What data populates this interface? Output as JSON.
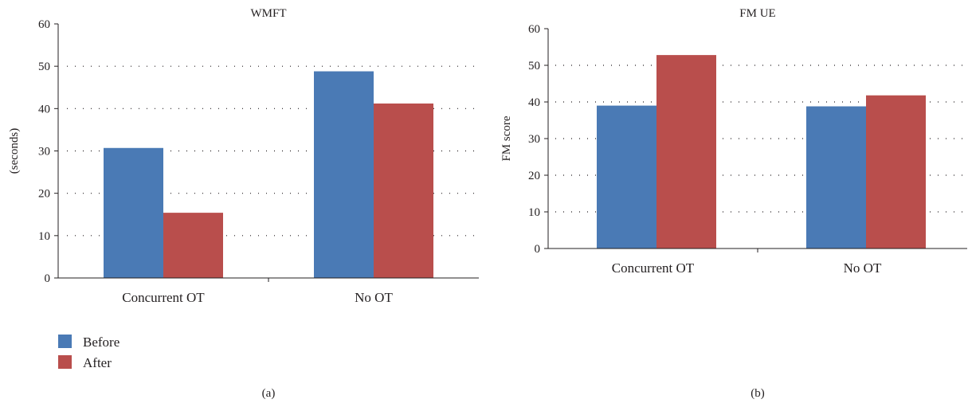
{
  "colors": {
    "before": "#4a7ab5",
    "after": "#b94e4c",
    "axis": "#231f20",
    "grid": "#231f20"
  },
  "legend": {
    "items": [
      {
        "label": "Before",
        "color": "#4a7ab5"
      },
      {
        "label": "After",
        "color": "#b94e4c"
      }
    ]
  },
  "chart_data": [
    {
      "type": "bar",
      "title": "WMFT",
      "panel_label": "(a)",
      "xlabel": "",
      "ylabel": "(seconds)",
      "categories": [
        "Concurrent OT",
        "No OT"
      ],
      "series": [
        {
          "name": "Before",
          "values": [
            30.7,
            48.8
          ]
        },
        {
          "name": "After",
          "values": [
            15.4,
            41.2
          ]
        }
      ],
      "ylim": [
        0,
        60
      ],
      "yticks": [
        "0",
        "10",
        "20",
        "30",
        "40",
        "50",
        "60"
      ],
      "grid": "dotted horizontal",
      "legend": "bottom-left"
    },
    {
      "type": "bar",
      "title": "FM UE",
      "panel_label": "(b)",
      "xlabel": "",
      "ylabel": "FM score",
      "categories": [
        "Concurrent OT",
        "No OT"
      ],
      "series": [
        {
          "name": "Before",
          "values": [
            39.0,
            38.8
          ]
        },
        {
          "name": "After",
          "values": [
            52.8,
            41.8
          ]
        }
      ],
      "ylim": [
        0,
        60
      ],
      "yticks": [
        "0",
        "10",
        "20",
        "30",
        "40",
        "50",
        "60"
      ],
      "grid": "dotted horizontal"
    }
  ]
}
